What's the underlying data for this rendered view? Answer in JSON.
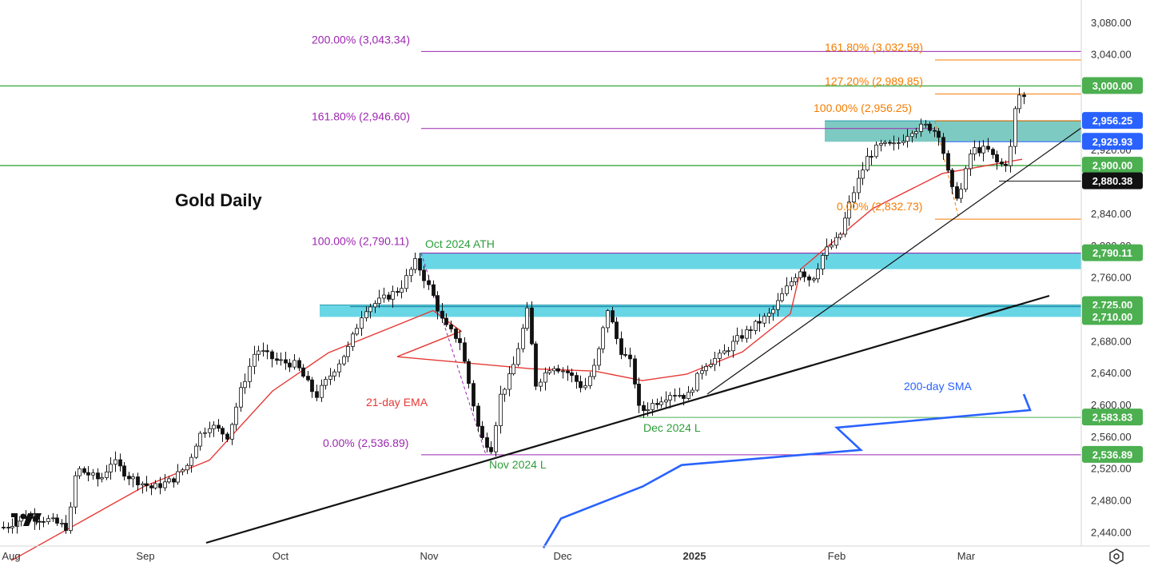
{
  "chart_data": {
    "type": "candlestick",
    "title": "Gold Daily",
    "y_ticks": [
      "3,080.00",
      "3,040.00",
      "2,960.00",
      "2,920.00",
      "2,840.00",
      "2,800.00",
      "2,760.00",
      "2,680.00",
      "2,640.00",
      "2,600.00",
      "2,560.00",
      "2,520.00",
      "2,480.00",
      "2,440.00"
    ],
    "x_ticks": [
      {
        "label": "Aug",
        "bold": false
      },
      {
        "label": "Sep",
        "bold": false
      },
      {
        "label": "Oct",
        "bold": false
      },
      {
        "label": "Nov",
        "bold": false
      },
      {
        "label": "Dec",
        "bold": false
      },
      {
        "label": "2025",
        "bold": true
      },
      {
        "label": "Feb",
        "bold": false
      },
      {
        "label": "Mar",
        "bold": false
      }
    ],
    "ylim": [
      2430,
      3100
    ],
    "price_tags": [
      {
        "label": "3,000.00",
        "price": 3000.0,
        "bg": "#4caf50",
        "fg": "#ffffff"
      },
      {
        "label": "2,956.25",
        "price": 2956.25,
        "bg": "#2962ff",
        "fg": "#ffffff"
      },
      {
        "label": "2,929.93",
        "price": 2929.93,
        "bg": "#2962ff",
        "fg": "#ffffff"
      },
      {
        "label": "2,900.00",
        "price": 2900.0,
        "bg": "#4caf50",
        "fg": "#ffffff"
      },
      {
        "label": "2,880.38",
        "price": 2880.38,
        "bg": "#111111",
        "fg": "#ffffff"
      },
      {
        "label": "2,790.11",
        "price": 2790.11,
        "bg": "#4caf50",
        "fg": "#ffffff"
      },
      {
        "label": "2,725.00",
        "price": 2725.0,
        "bg": "#4caf50",
        "fg": "#ffffff"
      },
      {
        "label": "2,710.00",
        "price": 2710.0,
        "bg": "#4caf50",
        "fg": "#ffffff"
      },
      {
        "label": "2,583.83",
        "price": 2583.83,
        "bg": "#4caf50",
        "fg": "#ffffff"
      },
      {
        "label": "2,536.89",
        "price": 2536.89,
        "bg": "#4caf50",
        "fg": "#ffffff"
      }
    ],
    "fib_labels_purple": [
      {
        "label": "200.00% (3,043.34)",
        "price": 3043.34
      },
      {
        "label": "161.80% (2,946.60)",
        "price": 2946.6
      },
      {
        "label": "100.00% (2,790.11)",
        "price": 2790.11
      },
      {
        "label": "0.00% (2,536.89)",
        "price": 2536.89
      }
    ],
    "fib_labels_orange": [
      {
        "label": "161.80% (3,032.59)",
        "price": 3032.59
      },
      {
        "label": "127.20% (2,989.85)",
        "price": 2989.85
      },
      {
        "label": "100.00% (2,956.25)",
        "price": 2956.25
      },
      {
        "label": "0.00% (2,832.73)",
        "price": 2832.73
      }
    ],
    "horizontal_levels": [
      3000.0,
      2900.0
    ],
    "zones": [
      {
        "low": 2929.93,
        "high": 2956.25
      },
      {
        "low": 2770.0,
        "high": 2790.11
      },
      {
        "low": 2710.0,
        "high": 2725.0
      }
    ],
    "annotations": {
      "ath": "Oct 2024 ATH",
      "dec_low": "Dec 2024 L",
      "nov_low": "Nov 2024 L",
      "ema": "21-day EMA",
      "sma": "200-day SMA"
    },
    "colors": {
      "up": "#ffffff",
      "down": "#111111",
      "ema": "#e53935",
      "sma": "#2962ff",
      "fib_purple": "#9c27b0",
      "fib_orange": "#f57c00",
      "level_green": "#4caf50",
      "zone_cyan": "#29c5da",
      "zone_teal": "#26a69a"
    },
    "series": [
      {
        "name": "21-day EMA",
        "points": [
          [
            "Aug",
            2404
          ],
          [
            "Sep",
            2497
          ],
          [
            "Sep",
            2530
          ],
          [
            "Oct",
            2617
          ],
          [
            "Oct",
            2665
          ],
          [
            "Nov",
            2718
          ],
          [
            "Nov",
            2692
          ],
          [
            "Nov",
            2660
          ],
          [
            "Dec",
            2645
          ],
          [
            "Dec",
            2642
          ],
          [
            "Dec",
            2630
          ],
          [
            "2025",
            2638
          ],
          [
            "2025",
            2666
          ],
          [
            "2025",
            2714
          ],
          [
            "Feb",
            2770
          ],
          [
            "Feb",
            2846
          ],
          [
            "Mar",
            2890
          ],
          [
            "Mar",
            2908
          ]
        ]
      },
      {
        "name": "200-day SMA",
        "points": [
          [
            "Nov",
            2420
          ],
          [
            "Dec",
            2457
          ],
          [
            "Dec",
            2497
          ],
          [
            "2025",
            2524
          ],
          [
            "Feb",
            2543
          ],
          [
            "Feb",
            2571
          ],
          [
            "Mar",
            2593
          ],
          [
            "Mar",
            2613
          ]
        ]
      }
    ]
  }
}
